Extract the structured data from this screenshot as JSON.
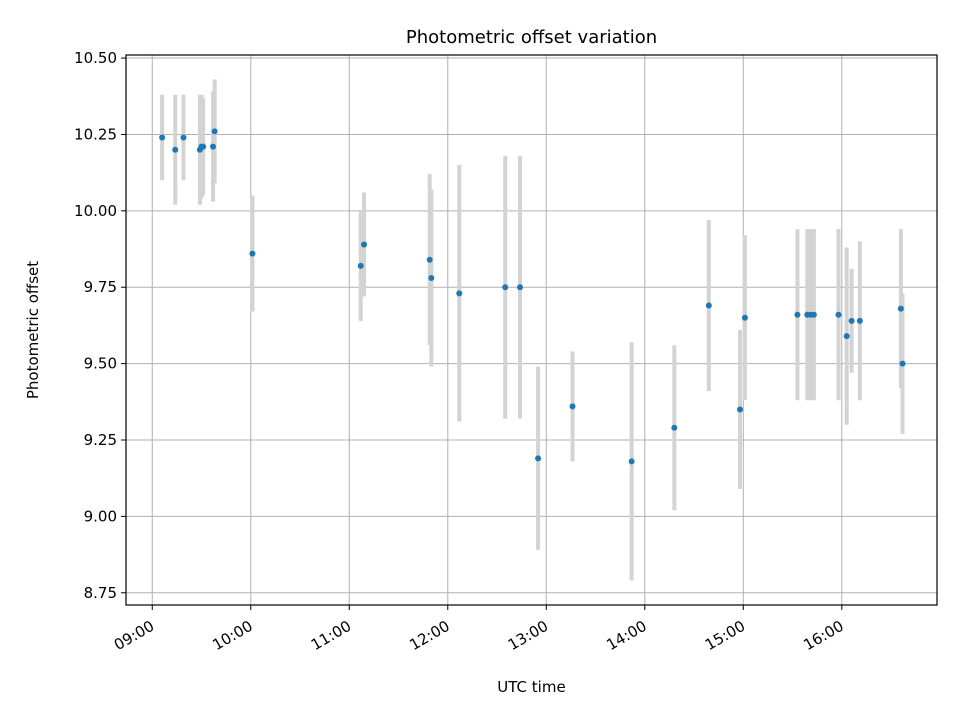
{
  "chart_data": {
    "type": "scatter",
    "title": "Photometric offset variation",
    "xlabel": "UTC time",
    "ylabel": "Photometric offset",
    "x_tick_labels": [
      "09:00",
      "10:00",
      "11:00",
      "12:00",
      "13:00",
      "14:00",
      "15:00",
      "16:00"
    ],
    "y_tick_labels": [
      "8.75",
      "9.00",
      "9.25",
      "9.50",
      "9.75",
      "10.00",
      "10.25",
      "10.50"
    ],
    "xlim": [
      "08:44",
      "16:58"
    ],
    "ylim": [
      8.71,
      10.51
    ],
    "grid": true,
    "marker_color": "#1f77b4",
    "errorbar_color": "#d3d3d3",
    "points": [
      {
        "t": "09:06",
        "y": 10.24,
        "err": 0.14
      },
      {
        "t": "09:14",
        "y": 10.2,
        "err": 0.18
      },
      {
        "t": "09:19",
        "y": 10.24,
        "err": 0.14
      },
      {
        "t": "09:29",
        "y": 10.2,
        "err": 0.18
      },
      {
        "t": "09:30",
        "y": 10.21,
        "err": 0.17
      },
      {
        "t": "09:31",
        "y": 10.21,
        "err": 0.16
      },
      {
        "t": "09:37",
        "y": 10.21,
        "err": 0.18
      },
      {
        "t": "09:38",
        "y": 10.26,
        "err": 0.17
      },
      {
        "t": "10:01",
        "y": 9.86,
        "err": 0.19
      },
      {
        "t": "11:07",
        "y": 9.82,
        "err": 0.18
      },
      {
        "t": "11:09",
        "y": 9.89,
        "err": 0.17
      },
      {
        "t": "11:49",
        "y": 9.84,
        "err": 0.28
      },
      {
        "t": "11:50",
        "y": 9.78,
        "err": 0.29
      },
      {
        "t": "12:07",
        "y": 9.73,
        "err": 0.42
      },
      {
        "t": "12:35",
        "y": 9.75,
        "err": 0.43
      },
      {
        "t": "12:44",
        "y": 9.75,
        "err": 0.43
      },
      {
        "t": "12:55",
        "y": 9.19,
        "err": 0.3
      },
      {
        "t": "13:16",
        "y": 9.36,
        "err": 0.18
      },
      {
        "t": "13:52",
        "y": 9.18,
        "err": 0.39
      },
      {
        "t": "14:18",
        "y": 9.29,
        "err": 0.27
      },
      {
        "t": "14:39",
        "y": 9.69,
        "err": 0.28
      },
      {
        "t": "14:58",
        "y": 9.35,
        "err": 0.26
      },
      {
        "t": "15:01",
        "y": 9.65,
        "err": 0.27
      },
      {
        "t": "15:33",
        "y": 9.66,
        "err": 0.28
      },
      {
        "t": "15:39",
        "y": 9.66,
        "err": 0.28
      },
      {
        "t": "15:41",
        "y": 9.66,
        "err": 0.28
      },
      {
        "t": "15:43",
        "y": 9.66,
        "err": 0.28
      },
      {
        "t": "15:58",
        "y": 9.66,
        "err": 0.28
      },
      {
        "t": "16:03",
        "y": 9.59,
        "err": 0.29
      },
      {
        "t": "16:06",
        "y": 9.64,
        "err": 0.17
      },
      {
        "t": "16:11",
        "y": 9.64,
        "err": 0.26
      },
      {
        "t": "16:36",
        "y": 9.68,
        "err": 0.26
      },
      {
        "t": "16:37",
        "y": 9.5,
        "err": 0.23
      }
    ]
  }
}
